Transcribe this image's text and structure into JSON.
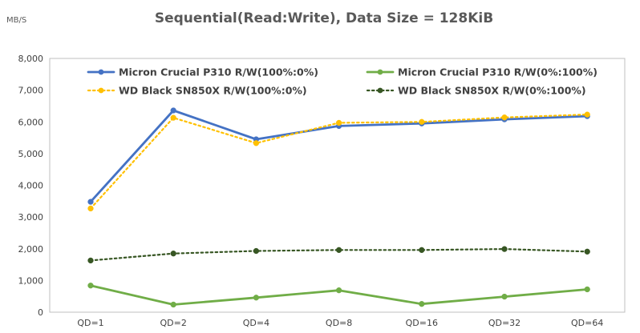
{
  "chart_data": {
    "type": "line",
    "title": "Sequential(Read:Write),  Data Size = 128KiB",
    "ylabel": "MB/S",
    "xlabel": "",
    "categories": [
      "QD=1",
      "QD=2",
      "QD=4",
      "QD=8",
      "QD=16",
      "QD=32",
      "QD=64"
    ],
    "ylim": [
      0,
      8000
    ],
    "yticks": [
      0,
      1000,
      2000,
      3000,
      4000,
      5000,
      6000,
      7000,
      8000
    ],
    "ytick_labels": [
      "0",
      "1,000",
      "2,000",
      "3,000",
      "4,000",
      "5,000",
      "6,000",
      "7,000",
      "8,000"
    ],
    "grid": false,
    "legend_position": "top",
    "series": [
      {
        "name": "Micron Crucial P310 R/W(100%:0%)",
        "values": [
          3480,
          6360,
          5450,
          5870,
          5950,
          6080,
          6180
        ],
        "color": "#4472C4",
        "style": "solid"
      },
      {
        "name": "Micron Crucial P310 R/W(0%:100%)",
        "values": [
          840,
          240,
          460,
          690,
          260,
          490,
          720
        ],
        "color": "#70AD47",
        "style": "solid"
      },
      {
        "name": "WD Black SN850X R/W(100%:0%)",
        "values": [
          3270,
          6130,
          5330,
          5970,
          6000,
          6140,
          6230
        ],
        "color": "#FFC000",
        "style": "dotted"
      },
      {
        "name": "WD Black SN850X R/W(0%:100%)",
        "values": [
          1630,
          1850,
          1930,
          1960,
          1960,
          1990,
          1910
        ],
        "color": "#375623",
        "style": "dotted"
      }
    ]
  }
}
